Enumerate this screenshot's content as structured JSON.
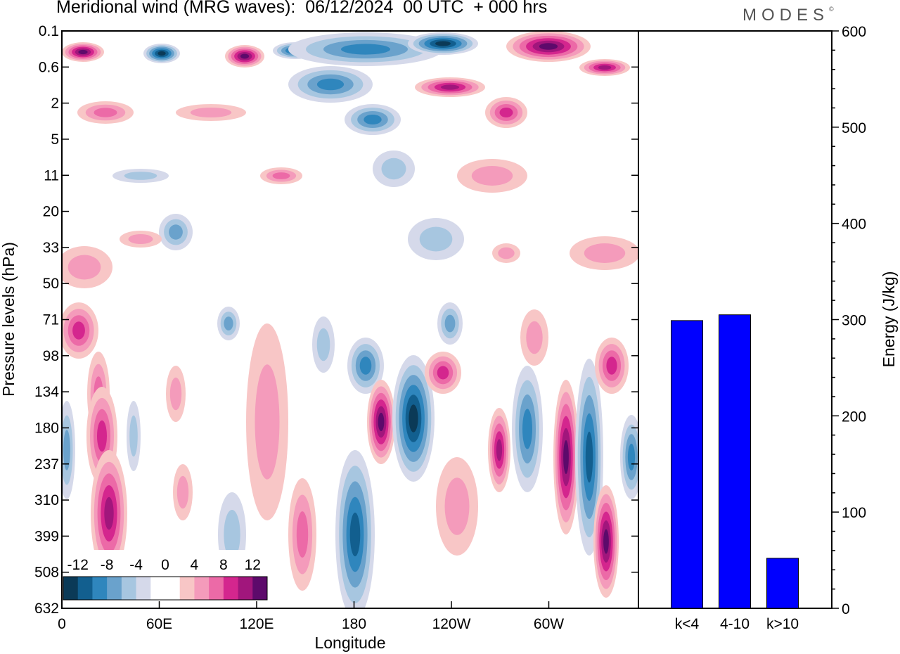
{
  "header": {
    "title": "Meridional wind (MRG waves):  06/12/2024  00 UTC  + 000 hrs",
    "brand": "MODES",
    "brand_mark": "©"
  },
  "chart_data": [
    {
      "type": "heatmap",
      "title": "Meridional wind (MRG waves):  06/12/2024  00 UTC  + 000 hrs",
      "xlabel": "Longitude",
      "ylabel": "Pressure levels (hPa)",
      "x_ticks": [
        "0",
        "60E",
        "120E",
        "180",
        "120W",
        "60W"
      ],
      "y_ticks": [
        "0.1",
        "0.6",
        "2",
        "5",
        "11",
        "20",
        "33",
        "50",
        "71",
        "98",
        "134",
        "180",
        "237",
        "310",
        "399",
        "508",
        "632"
      ],
      "colorbar": {
        "labels": [
          "-12",
          "-8",
          "-4",
          "0",
          "4",
          "8",
          "12"
        ],
        "colors": [
          "#0b3a57",
          "#125f8f",
          "#2f86bd",
          "#6aa2cc",
          "#a7c6e0",
          "#d5d9ea",
          "#ffffff",
          "#ffffff",
          "#f8c6c6",
          "#f49bbb",
          "#ec6aa7",
          "#d4268e",
          "#a1167c",
          "#5d0a6b"
        ]
      }
    },
    {
      "type": "bar",
      "categories": [
        "k<4",
        "4-10",
        "k>10"
      ],
      "values": [
        299,
        305,
        52
      ],
      "ylabel": "Energy (J/kg)",
      "ylim": [
        0,
        600
      ],
      "y_ticks": [
        0,
        100,
        200,
        300,
        400,
        500,
        600
      ],
      "bar_color": "#0000ff"
    }
  ]
}
